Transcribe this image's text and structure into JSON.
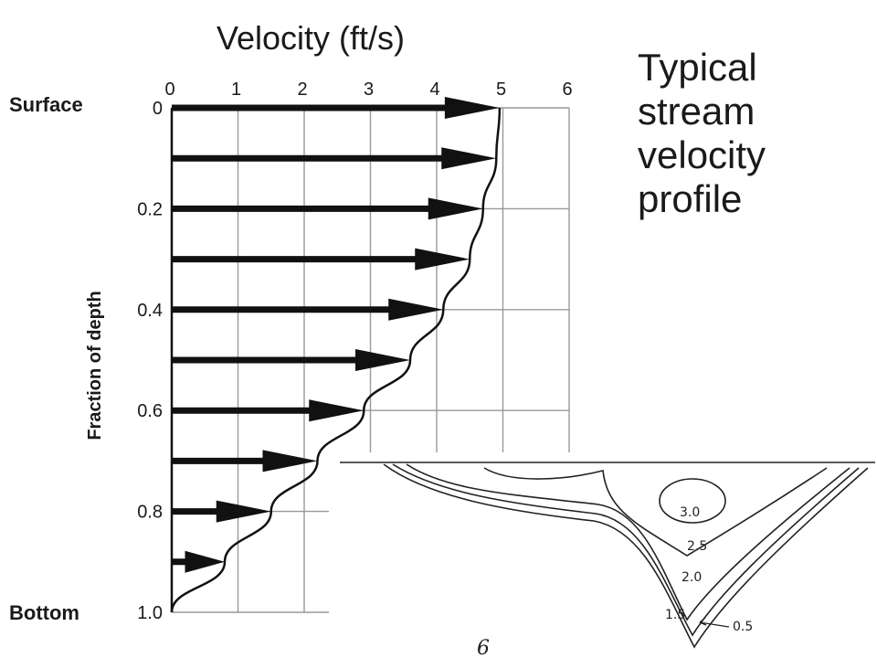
{
  "chart_data": [
    {
      "type": "line",
      "title": "Velocity (ft/s)",
      "xlabel": "Velocity (ft/s)",
      "ylabel": "Fraction of depth",
      "x_ticks": [
        "0",
        "1",
        "2",
        "3",
        "4",
        "5",
        "6"
      ],
      "y_ticks": [
        "0",
        "0.2",
        "0.4",
        "0.6",
        "0.8",
        "1.0"
      ],
      "xlim": [
        0,
        6
      ],
      "ylim": [
        0,
        1.0
      ],
      "y_inverted": true,
      "top_label": "Surface",
      "bottom_label": "Bottom",
      "grid": true,
      "series": [
        {
          "depth": [
            0,
            0.1,
            0.2,
            0.3,
            0.4,
            0.5,
            0.6,
            0.7,
            0.8,
            0.9,
            1.0
          ],
          "velocity": [
            4.95,
            4.9,
            4.7,
            4.5,
            4.1,
            3.6,
            2.9,
            2.2,
            1.5,
            0.8,
            0.0
          ]
        }
      ]
    },
    {
      "type": "contour",
      "contour_labels": [
        "3.0",
        "2.5",
        "2.0",
        "1.5",
        "0.5"
      ],
      "page_number": "6"
    }
  ],
  "caption_lines": [
    "Typical",
    "stream",
    "velocity",
    "profile"
  ],
  "colors": {
    "ink": "#111111",
    "grid": "#888888",
    "background": "#ffffff"
  }
}
